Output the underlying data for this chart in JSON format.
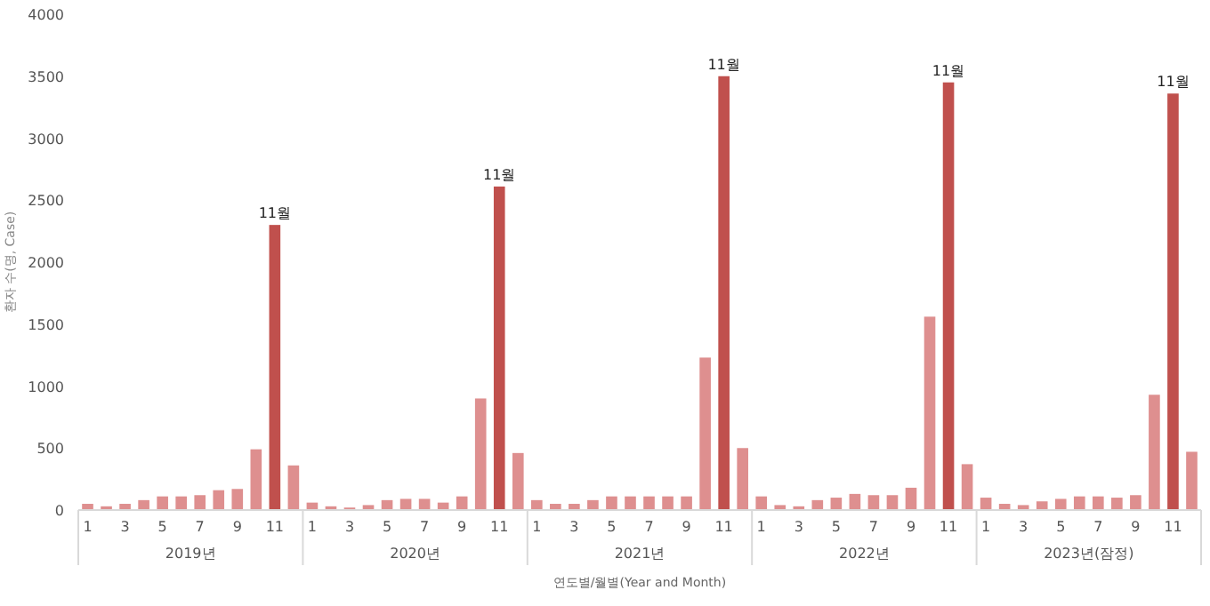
{
  "chart_data": {
    "type": "bar",
    "ylabel": "환자 수(명, Case)",
    "xlabel": "연도별/월별(Year and Month)",
    "categories": [
      "1",
      null,
      "3",
      null,
      "5",
      null,
      "7",
      null,
      "9",
      null,
      "11",
      null,
      "1",
      null,
      "3",
      null,
      "5",
      null,
      "7",
      null,
      "9",
      null,
      "11",
      null,
      "1",
      null,
      "3",
      null,
      "5",
      null,
      "7",
      null,
      "9",
      null,
      "11",
      null,
      "1",
      null,
      "3",
      null,
      "5",
      null,
      "7",
      null,
      "9",
      null,
      "11",
      null,
      "1",
      null,
      "3",
      null,
      "5",
      null,
      "7",
      null,
      "9",
      null,
      "11",
      null
    ],
    "values": [
      50,
      30,
      50,
      80,
      110,
      110,
      120,
      160,
      170,
      490,
      2300,
      360,
      60,
      30,
      20,
      40,
      80,
      90,
      90,
      60,
      110,
      900,
      2610,
      460,
      80,
      50,
      50,
      80,
      110,
      110,
      110,
      110,
      110,
      1230,
      3500,
      500,
      110,
      40,
      30,
      80,
      100,
      130,
      120,
      120,
      180,
      1560,
      3450,
      370,
      100,
      50,
      40,
      70,
      90,
      110,
      110,
      100,
      120,
      930,
      3360,
      470
    ],
    "colors": [
      "#de8f8f",
      "#de8f8f",
      "#de8f8f",
      "#de8f8f",
      "#de8f8f",
      "#de8f8f",
      "#de8f8f",
      "#de8f8f",
      "#de8f8f",
      "#de8f8f",
      "#c0504d",
      "#de8f8f",
      "#de8f8f",
      "#de8f8f",
      "#de8f8f",
      "#de8f8f",
      "#de8f8f",
      "#de8f8f",
      "#de8f8f",
      "#de8f8f",
      "#de8f8f",
      "#de8f8f",
      "#c0504d",
      "#de8f8f",
      "#de8f8f",
      "#de8f8f",
      "#de8f8f",
      "#de8f8f",
      "#de8f8f",
      "#de8f8f",
      "#de8f8f",
      "#de8f8f",
      "#de8f8f",
      "#de8f8f",
      "#c0504d",
      "#de8f8f",
      "#de8f8f",
      "#de8f8f",
      "#de8f8f",
      "#de8f8f",
      "#de8f8f",
      "#de8f8f",
      "#de8f8f",
      "#de8f8f",
      "#de8f8f",
      "#de8f8f",
      "#c0504d",
      "#de8f8f",
      "#de8f8f",
      "#de8f8f",
      "#de8f8f",
      "#de8f8f",
      "#de8f8f",
      "#de8f8f",
      "#de8f8f",
      "#de8f8f",
      "#de8f8f",
      "#de8f8f",
      "#c0504d",
      "#de8f8f"
    ],
    "annotations": [
      "2019년",
      "2020년",
      "2021년",
      "2022년",
      "2023년(잠정)",
      "11월",
      "11월",
      "11월",
      "11월",
      "11월"
    ],
    "ylim": [
      0,
      4000
    ],
    "yticks": [
      0,
      500,
      1000,
      1500,
      2000,
      2500,
      3000,
      3500,
      4000
    ]
  }
}
